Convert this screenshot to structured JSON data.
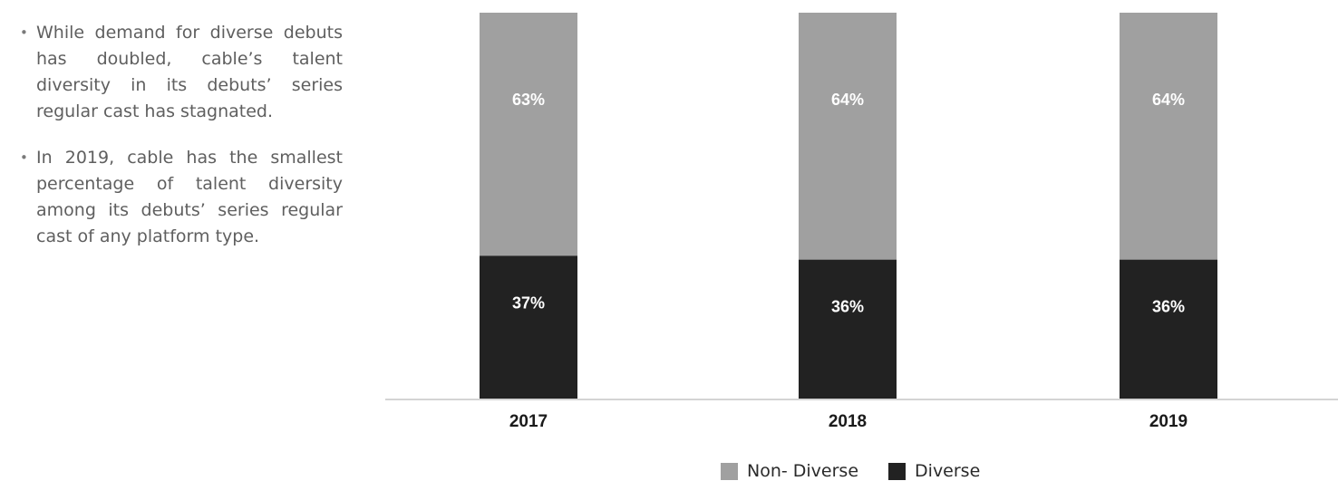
{
  "notes": [
    "While demand for diverse debuts has doubled, cable’s talent diversity in its debuts’ series regular cast has stagnated.",
    "In 2019, cable has the smallest percentage of talent diversity among its debuts’ series regular cast of any platform type."
  ],
  "colors": {
    "non_diverse": "#a0a0a0",
    "diverse": "#222222",
    "axis": "#d4d4d4",
    "bar_text": "#ffffff"
  },
  "chart_data": {
    "type": "bar",
    "stacked": true,
    "percent": true,
    "categories": [
      "2017",
      "2018",
      "2019"
    ],
    "series": [
      {
        "name": "Diverse",
        "values": [
          37,
          36,
          36
        ],
        "labels": [
          "37%",
          "36%",
          "36%"
        ],
        "color": "#222222"
      },
      {
        "name": "Non- Diverse",
        "values": [
          63,
          64,
          64
        ],
        "labels": [
          "63%",
          "64%",
          "64%"
        ],
        "color": "#a0a0a0"
      }
    ],
    "ylim": [
      0,
      100
    ],
    "grid": false,
    "legend": "bottom"
  },
  "legend": [
    {
      "label": "Non- Diverse",
      "color": "#a0a0a0"
    },
    {
      "label": "Diverse",
      "color": "#222222"
    }
  ]
}
